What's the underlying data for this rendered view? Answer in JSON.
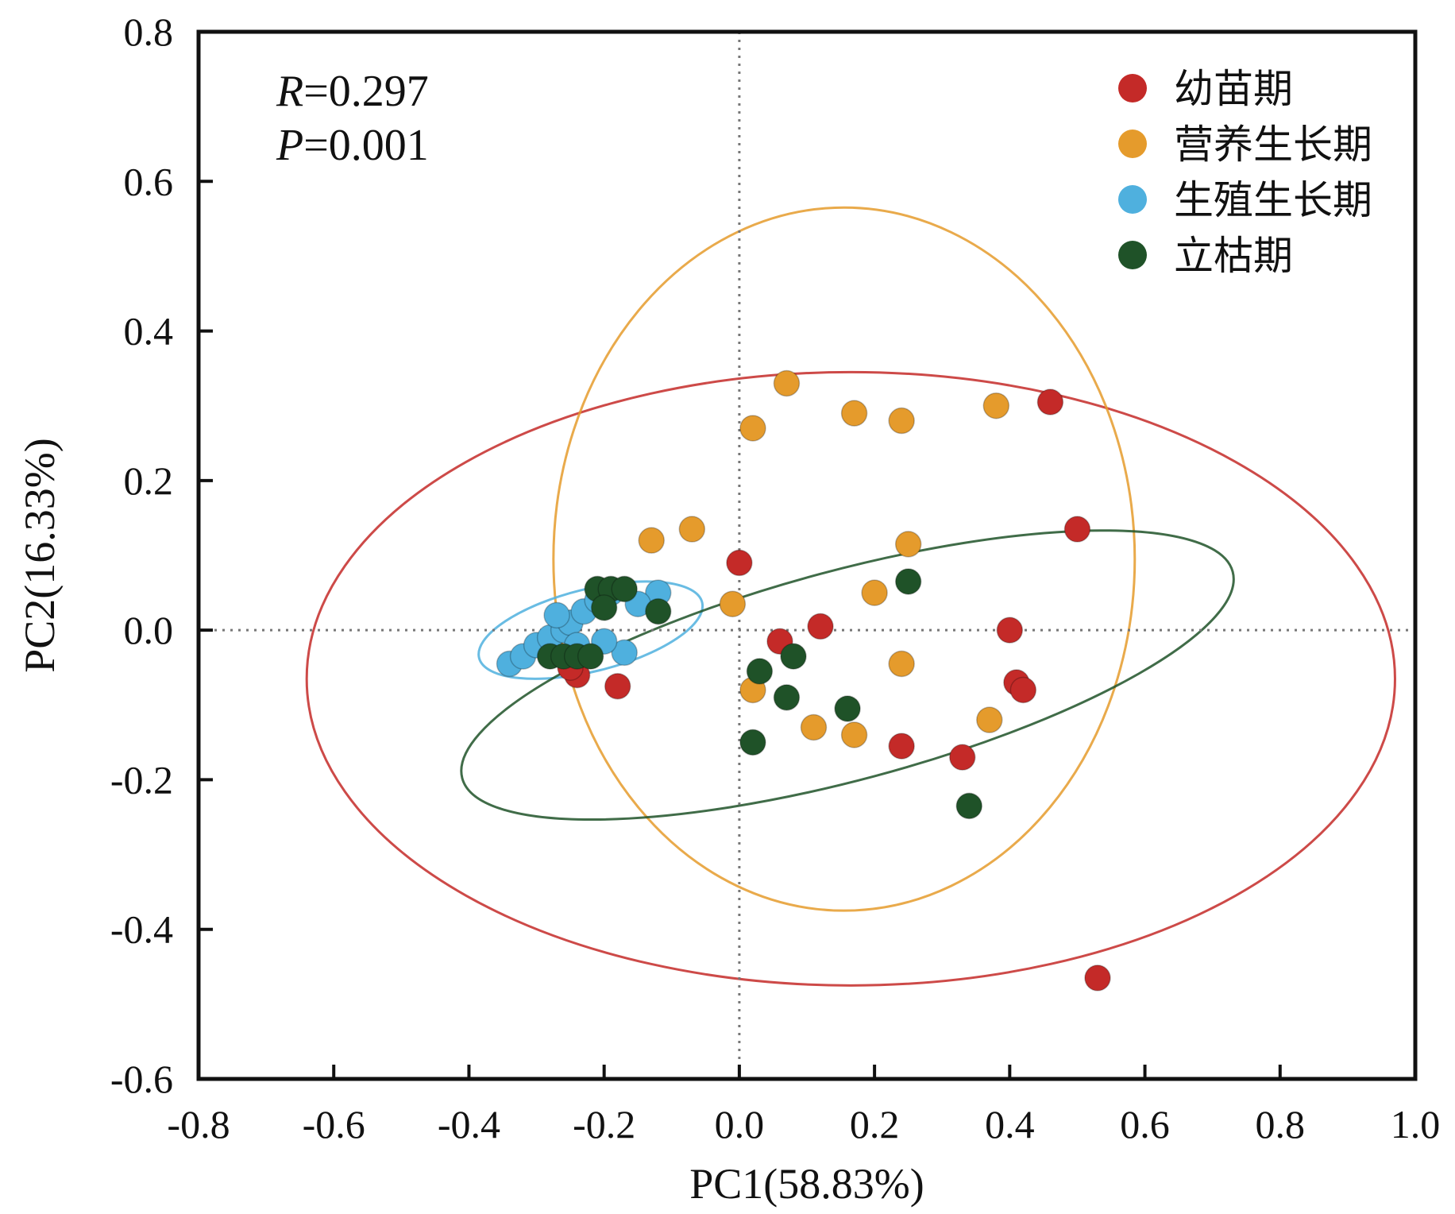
{
  "chart_data": {
    "type": "scatter",
    "xlabel": "PC1(58.83%)",
    "ylabel": "PC2(16.33%)",
    "xlim": [
      -0.8,
      1.0
    ],
    "ylim": [
      -0.6,
      0.8
    ],
    "xticks": [
      "-0.8",
      "-0.6",
      "-0.4",
      "-0.2",
      "0.0",
      "0.2",
      "0.4",
      "0.6",
      "0.8",
      "1.0"
    ],
    "yticks": [
      "0.8",
      "0.6",
      "0.4",
      "0.2",
      "0.0",
      "-0.2",
      "-0.4",
      "-0.6"
    ],
    "zero_lines": true,
    "stats": {
      "r_label": "R",
      "r_value": "=0.297",
      "p_label": "P",
      "p_value": "=0.001"
    },
    "legend_position": "top-right",
    "series": [
      {
        "name": "幼苗期",
        "color": "#c42a28",
        "points": [
          [
            0.46,
            0.305
          ],
          [
            0.5,
            0.135
          ],
          [
            0.0,
            0.09
          ],
          [
            0.12,
            0.005
          ],
          [
            0.4,
            0.0
          ],
          [
            0.06,
            -0.015
          ],
          [
            0.41,
            -0.07
          ],
          [
            0.42,
            -0.08
          ],
          [
            0.24,
            -0.155
          ],
          [
            0.33,
            -0.17
          ],
          [
            0.53,
            -0.465
          ],
          [
            -0.24,
            -0.06
          ],
          [
            -0.18,
            -0.075
          ],
          [
            -0.25,
            -0.05
          ]
        ],
        "ellipse": {
          "cx": 0.165,
          "cy": -0.065,
          "rx": 0.805,
          "ry": 0.41,
          "angle": 0
        }
      },
      {
        "name": "营养生长期",
        "color": "#e59b2c",
        "points": [
          [
            0.07,
            0.33
          ],
          [
            0.02,
            0.27
          ],
          [
            0.17,
            0.29
          ],
          [
            0.24,
            0.28
          ],
          [
            0.38,
            0.3
          ],
          [
            -0.13,
            0.12
          ],
          [
            -0.07,
            0.135
          ],
          [
            0.25,
            0.115
          ],
          [
            0.2,
            0.05
          ],
          [
            -0.01,
            0.035
          ],
          [
            0.24,
            -0.045
          ],
          [
            0.02,
            -0.08
          ],
          [
            0.11,
            -0.13
          ],
          [
            0.17,
            -0.14
          ],
          [
            0.37,
            -0.12
          ]
        ],
        "ellipse": {
          "cx": 0.155,
          "cy": 0.095,
          "rx": 0.43,
          "ry": 0.47,
          "angle": 0
        }
      },
      {
        "name": "生殖生长期",
        "color": "#4fb0de",
        "points": [
          [
            -0.34,
            -0.045
          ],
          [
            -0.32,
            -0.035
          ],
          [
            -0.3,
            -0.02
          ],
          [
            -0.28,
            -0.01
          ],
          [
            -0.26,
            0.0
          ],
          [
            -0.25,
            0.01
          ],
          [
            -0.27,
            0.02
          ],
          [
            -0.23,
            0.025
          ],
          [
            -0.21,
            0.04
          ],
          [
            -0.19,
            0.05
          ],
          [
            -0.12,
            0.05
          ],
          [
            -0.15,
            0.035
          ],
          [
            -0.17,
            -0.03
          ],
          [
            -0.2,
            -0.015
          ],
          [
            -0.24,
            -0.02
          ]
        ],
        "ellipse": {
          "cx": -0.22,
          "cy": 0.0,
          "rx": 0.17,
          "ry": 0.055,
          "angle": -14
        }
      },
      {
        "name": "立枯期",
        "color": "#1f5228",
        "points": [
          [
            -0.21,
            0.055
          ],
          [
            -0.19,
            0.055
          ],
          [
            -0.17,
            0.055
          ],
          [
            -0.2,
            0.03
          ],
          [
            -0.12,
            0.025
          ],
          [
            -0.28,
            -0.035
          ],
          [
            -0.26,
            -0.035
          ],
          [
            -0.24,
            -0.035
          ],
          [
            -0.22,
            -0.035
          ],
          [
            0.25,
            0.065
          ],
          [
            0.08,
            -0.035
          ],
          [
            0.03,
            -0.055
          ],
          [
            0.07,
            -0.09
          ],
          [
            0.16,
            -0.105
          ],
          [
            0.02,
            -0.15
          ],
          [
            0.34,
            -0.235
          ]
        ],
        "ellipse": {
          "cx": 0.16,
          "cy": -0.06,
          "rx": 0.59,
          "ry": 0.14,
          "angle": -15
        }
      }
    ]
  }
}
